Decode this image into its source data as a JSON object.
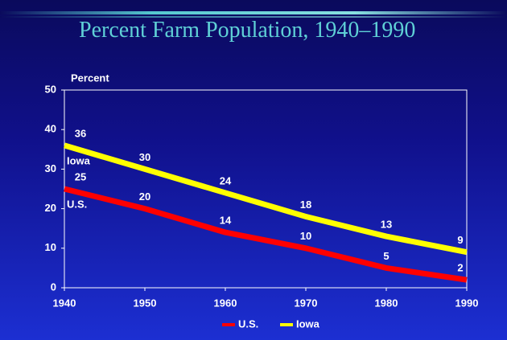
{
  "chart_data": {
    "type": "line",
    "title": "Percent Farm Population, 1940–1990",
    "y_label": "Percent",
    "x": [
      1940,
      1950,
      1960,
      1970,
      1980,
      1990
    ],
    "xlim": [
      1940,
      1990
    ],
    "xticks": [
      1940,
      1950,
      1960,
      1970,
      1980,
      1990
    ],
    "ylim": [
      0,
      50
    ],
    "yticks": [
      0,
      10,
      20,
      30,
      40,
      50
    ],
    "series": [
      {
        "name": "U.S.",
        "color": "#ff0000",
        "values": [
          25,
          20,
          14,
          10,
          5,
          2
        ]
      },
      {
        "name": "Iowa",
        "color": "#ffff00",
        "values": [
          36,
          30,
          24,
          18,
          13,
          9
        ]
      }
    ],
    "legend": "bottom"
  }
}
